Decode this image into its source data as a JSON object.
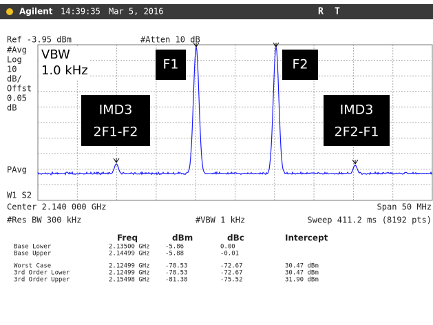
{
  "header": {
    "brand": "Agilent",
    "time": "14:39:35",
    "date": "Mar 5, 2016",
    "flags": [
      "R",
      "T"
    ]
  },
  "screen": {
    "ref": "Ref -3.95 dBm",
    "atten": "#Atten 10 dB",
    "left_labels": [
      "#Avg",
      "Log",
      "10",
      "dB/",
      "Offst",
      "0.05",
      "dB"
    ],
    "pavg": "PAvg",
    "w1s2": "W1  S2",
    "vbw_box": [
      "VBW",
      "1.0 kHz"
    ],
    "f1": "F1",
    "f2": "F2",
    "imd_left": [
      "IMD3",
      "2F1-F2"
    ],
    "imd_right": [
      "IMD3",
      "2F2-F1"
    ],
    "center": "Center 2.140 000 GHz",
    "span": "Span 50 MHz",
    "res_bw": "#Res BW 300 kHz",
    "vbw": "#VBW 1 kHz",
    "sweep": "Sweep 411.2 ms (8192 pts)"
  },
  "table": {
    "headers": [
      "Freq",
      "dBm",
      "dBc",
      "Intercept"
    ],
    "rows": [
      {
        "name": "Base Lower",
        "freq": "2.13500 GHz",
        "dbm": "-5.86",
        "dbc": "0.00"
      },
      {
        "name": "Base Upper",
        "freq": "2.14499 GHz",
        "dbm": "-5.88",
        "dbc": "-0.01"
      },
      {
        "name": "Worst Case",
        "freq": "2.12499 GHz",
        "dbm": "-78.53",
        "dbc": "-72.67",
        "intercept": "30.47 dBm"
      },
      {
        "name": "3rd Order Lower",
        "freq": "2.12499 GHz",
        "dbm": "-78.53",
        "dbc": "-72.67",
        "intercept": "30.47 dBm"
      },
      {
        "name": "3rd Order Upper",
        "freq": "2.15498 GHz",
        "dbm": "-81.38",
        "dbc": "-75.52",
        "intercept": "31.90 dBm"
      }
    ]
  }
}
